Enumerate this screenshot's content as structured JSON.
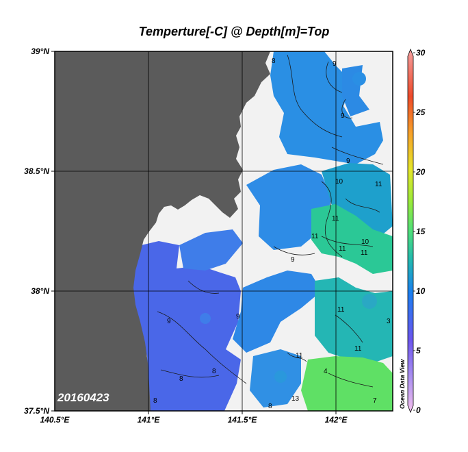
{
  "title": "Temperture[-C] @ Depth[m]=Top",
  "date_stamp": "20160423",
  "watermark": "Ocean Data View",
  "lat_labels": [
    "39°N",
    "38.5°N",
    "38°N",
    "37.5°N"
  ],
  "lon_labels": [
    "140.5°E",
    "141°E",
    "141.5°E",
    "142°E"
  ],
  "colorbar": {
    "min": 0,
    "max": 30,
    "tick_labels": [
      "30",
      "25",
      "20",
      "15",
      "10",
      "5",
      "0"
    ],
    "stops": [
      "#f4c0ee",
      "#6b55ee",
      "#1a7ff0",
      "#22b9b0",
      "#4fe07a",
      "#9aeb3a",
      "#e6e62a",
      "#f7a12a",
      "#ee4a2a",
      "#f5a0a0"
    ]
  },
  "colors": {
    "land": "#5b5b5b",
    "no_data": "#f2f2f2",
    "contour": "#1a1a1a"
  },
  "contour_labels": [
    "8",
    "9",
    "9",
    "9",
    "10",
    "11",
    "11",
    "11",
    "11",
    "10",
    "11",
    "9",
    "9",
    "8",
    "8",
    "8",
    "9",
    "11",
    "11",
    "4",
    "11",
    "3",
    "13",
    "8",
    "7"
  ]
}
